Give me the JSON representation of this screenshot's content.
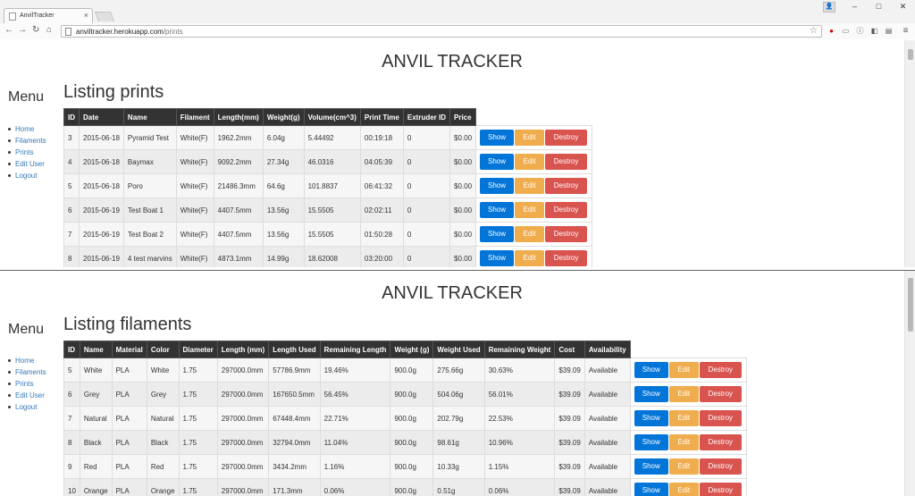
{
  "browser": {
    "tab_title": "AnvilTracker",
    "tab_close": "×",
    "url_host": "anviltracker.herokuapp.com",
    "url_path": "/prints",
    "win_min": "–",
    "win_max": "□",
    "win_close": "✕"
  },
  "site": {
    "brand": "ANVIL TRACKER",
    "menu_title": "Menu",
    "nav": [
      "Home",
      "Filaments",
      "Prints",
      "Edit User",
      "Logout"
    ],
    "buttons": {
      "show": "Show",
      "edit": "Edit",
      "destroy": "Destroy"
    }
  },
  "prints": {
    "heading": "Listing prints",
    "columns": [
      "ID",
      "Date",
      "Name",
      "Filament",
      "Length(mm)",
      "Weight(g)",
      "Volume(cm^3)",
      "Print Time",
      "Extruder ID",
      "Price"
    ],
    "rows": [
      [
        "3",
        "2015-06-18",
        "Pyramid Test",
        "White(F)",
        "1962.2mm",
        "6.04g",
        "5.44492",
        "00:19:18",
        "0",
        "$0.00"
      ],
      [
        "4",
        "2015-06-18",
        "Baymax",
        "White(F)",
        "9092.2mm",
        "27.34g",
        "46.0316",
        "04:05:39",
        "0",
        "$0.00"
      ],
      [
        "5",
        "2015-06-18",
        "Poro",
        "White(F)",
        "21486.3mm",
        "64.6g",
        "101.8837",
        "06:41:32",
        "0",
        "$0.00"
      ],
      [
        "6",
        "2015-06-19",
        "Test Boat 1",
        "White(F)",
        "4407.5mm",
        "13.56g",
        "15.5505",
        "02:02:11",
        "0",
        "$0.00"
      ],
      [
        "7",
        "2015-06-19",
        "Test Boat 2",
        "White(F)",
        "4407.5mm",
        "13.56g",
        "15.5505",
        "01:50:28",
        "0",
        "$0.00"
      ],
      [
        "8",
        "2015-06-19",
        "4 test marvins",
        "White(F)",
        "4873.1mm",
        "14.99g",
        "18.62008",
        "03:20:00",
        "0",
        "$0.00"
      ]
    ]
  },
  "filaments": {
    "heading": "Listing filaments",
    "columns": [
      "ID",
      "Name",
      "Material",
      "Color",
      "Diameter",
      "Length (mm)",
      "Length Used",
      "Remaining Length",
      "Weight (g)",
      "Weight Used",
      "Remaining Weight",
      "Cost",
      "Availability"
    ],
    "rows": [
      [
        "5",
        "White",
        "PLA",
        "White",
        "1.75",
        "297000.0mm",
        "57786.9mm",
        "19.46%",
        "900.0g",
        "275.66g",
        "30.63%",
        "$39.09",
        "Available"
      ],
      [
        "6",
        "Grey",
        "PLA",
        "Grey",
        "1.75",
        "297000.0mm",
        "167650.5mm",
        "56.45%",
        "900.0g",
        "504.06g",
        "56.01%",
        "$39.09",
        "Available"
      ],
      [
        "7",
        "Natural",
        "PLA",
        "Natural",
        "1.75",
        "297000.0mm",
        "67448.4mm",
        "22.71%",
        "900.0g",
        "202.79g",
        "22.53%",
        "$39.09",
        "Available"
      ],
      [
        "8",
        "Black",
        "PLA",
        "Black",
        "1.75",
        "297000.0mm",
        "32794.0mm",
        "11.04%",
        "900.0g",
        "98.61g",
        "10.96%",
        "$39.09",
        "Available"
      ],
      [
        "9",
        "Red",
        "PLA",
        "Red",
        "1.75",
        "297000.0mm",
        "3434.2mm",
        "1.16%",
        "900.0g",
        "10.33g",
        "1.15%",
        "$39.09",
        "Available"
      ],
      [
        "10",
        "Orange",
        "PLA",
        "Orange",
        "1.75",
        "297000.0mm",
        "171.3mm",
        "0.06%",
        "900.0g",
        "0.51g",
        "0.06%",
        "$39.09",
        "Available"
      ]
    ]
  },
  "colors": {
    "show": "#0275d8",
    "edit": "#f0ad4e",
    "destroy": "#d9534f",
    "link": "#337ab7",
    "header": "#333333"
  }
}
